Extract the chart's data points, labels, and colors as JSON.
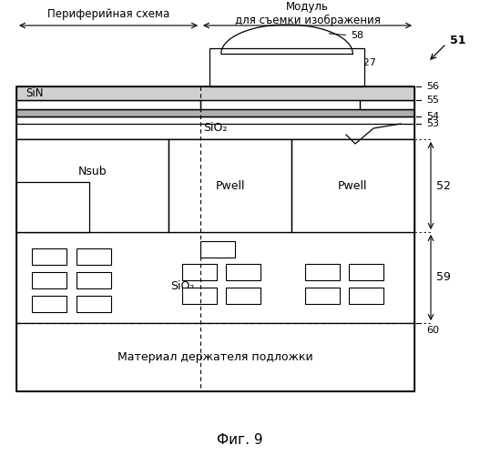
{
  "title": "Фиг. 9",
  "bg_color": "#ffffff",
  "label_51": "51",
  "label_52": "52",
  "label_53": "53",
  "label_54": "54",
  "label_55": "55",
  "label_56": "56",
  "label_58": "58",
  "label_59": "59",
  "label_60": "60",
  "label_A27": "A27",
  "label_SiN": "SiN",
  "label_SiO2_top": "SiO₂",
  "label_SiO2_bot": "SiO₂",
  "label_Nsub": "Nsub",
  "label_Pwell1": "Pwell",
  "label_Pwell2": "Pwell",
  "label_substrate": "Материал держателя подложки",
  "label_peripheral": "Периферийная схема",
  "label_module_line1": "Модуль",
  "label_module_line2": "для съемки изображения"
}
